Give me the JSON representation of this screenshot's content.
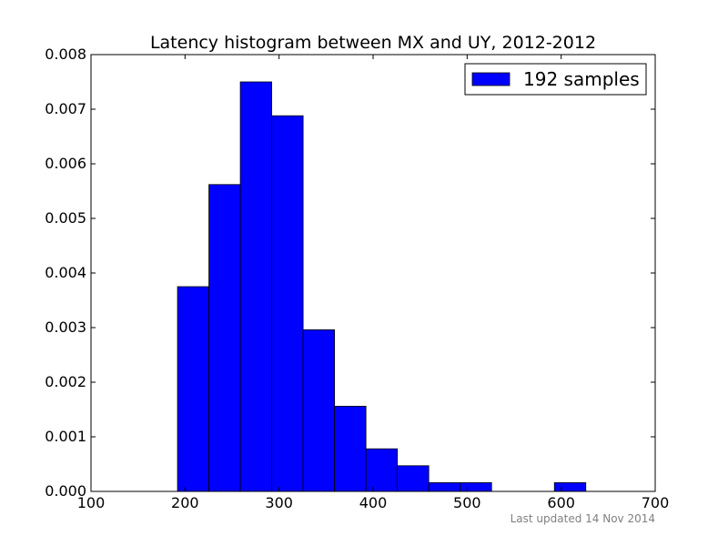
{
  "chart_data": {
    "type": "bar",
    "title": "Latency histogram between MX and UY, 2012-2012",
    "xlabel": "",
    "ylabel": "",
    "xlim": [
      100,
      700
    ],
    "ylim": [
      0,
      0.008
    ],
    "x_ticks": [
      100,
      200,
      300,
      400,
      500,
      600,
      700
    ],
    "x_tick_labels": [
      "100",
      "200",
      "300",
      "400",
      "500",
      "600",
      "700"
    ],
    "y_ticks": [
      0,
      0.001,
      0.002,
      0.003,
      0.004,
      0.005,
      0.006,
      0.007,
      0.008
    ],
    "y_tick_labels": [
      "0.000",
      "0.001",
      "0.002",
      "0.003",
      "0.004",
      "0.005",
      "0.006",
      "0.007",
      "0.008"
    ],
    "bin_edges": [
      192,
      225.4,
      258.8,
      292.2,
      325.6,
      359,
      392.4,
      425.8,
      459.2,
      492.6,
      526,
      559.4,
      592.8,
      626.2
    ],
    "values": [
      0.00375,
      0.00562,
      0.0075,
      0.00688,
      0.00296,
      0.00156,
      0.00078,
      0.00047,
      0.00016,
      0.00016,
      0,
      0,
      0.00016
    ],
    "series": [
      {
        "name": "192 samples",
        "color": "#0000ff"
      }
    ],
    "bar_color": "#0000ff",
    "grid": false,
    "legend": {
      "placement": "top-right",
      "entries": [
        "192 samples"
      ]
    }
  },
  "footer": {
    "text": "Last updated 14 Nov 2014"
  }
}
